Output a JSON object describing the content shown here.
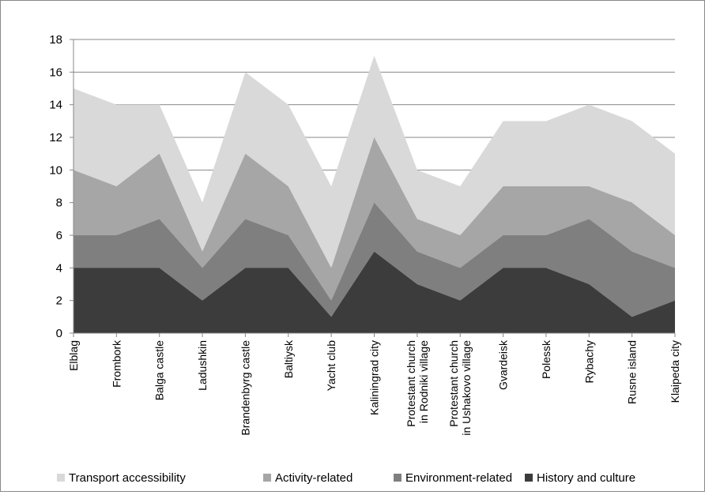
{
  "chart_data": {
    "type": "area",
    "stacked": true,
    "title": "",
    "xlabel": "",
    "ylabel": "",
    "ylim": [
      0,
      18
    ],
    "y_ticks": [
      0,
      2,
      4,
      6,
      8,
      10,
      12,
      14,
      16,
      18
    ],
    "grid": true,
    "legend_position": "bottom",
    "categories": [
      "Elblag",
      "Frombork",
      "Balga castle",
      "Ladushkin",
      "Brandenbyrg castle",
      "Baltiysk",
      "Yacht club",
      "Kaliningrad city",
      [
        "Protestant church",
        "in Rodniki village"
      ],
      [
        "Protestant church",
        "in Ushakovo village"
      ],
      "Gvardeisk",
      "Polessk",
      "Rybachy",
      "Rusne island",
      "Klaipeda city"
    ],
    "series": [
      {
        "name": "History and culture",
        "color": "#3c3c3c",
        "values": [
          4,
          4,
          4,
          2,
          4,
          4,
          1,
          5,
          3,
          2,
          4,
          4,
          3,
          1,
          2
        ]
      },
      {
        "name": "Environment-related",
        "color": "#7f7f7f",
        "values": [
          2,
          2,
          3,
          2,
          3,
          2,
          1,
          3,
          2,
          2,
          2,
          2,
          4,
          4,
          2
        ]
      },
      {
        "name": "Activity-related",
        "color": "#a6a6a6",
        "values": [
          4,
          3,
          4,
          1,
          4,
          3,
          2,
          4,
          2,
          2,
          3,
          3,
          2,
          3,
          2
        ]
      },
      {
        "name": "Transport accessibility",
        "color": "#d9d9d9",
        "values": [
          5,
          5,
          3,
          3,
          5,
          5,
          5,
          5,
          3,
          3,
          4,
          4,
          5,
          5,
          5
        ]
      }
    ],
    "legend_order": [
      "Transport accessibility",
      "Activity-related",
      "Environment-related",
      "History and culture"
    ]
  }
}
